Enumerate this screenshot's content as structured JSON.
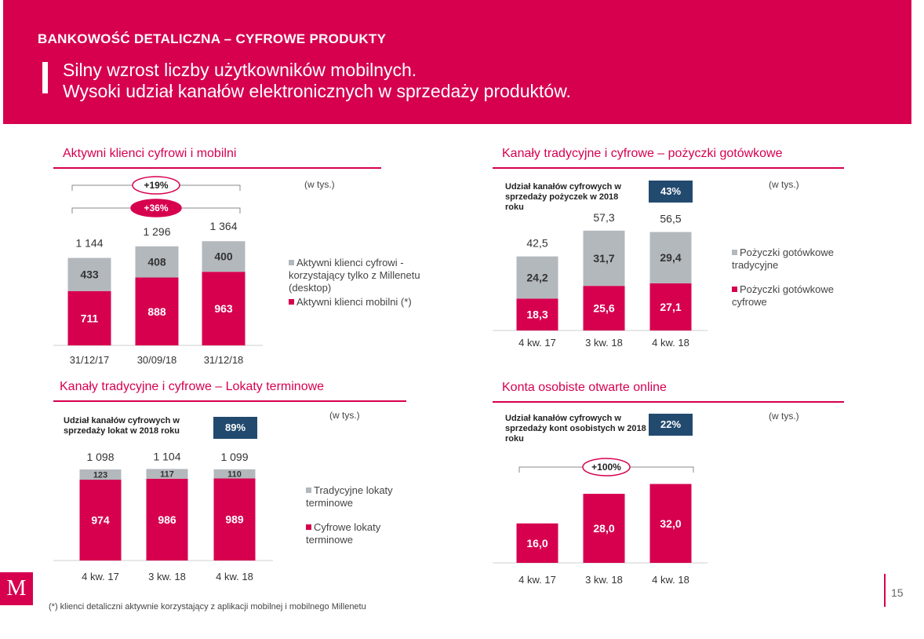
{
  "header": {
    "title": "BANKOWOŚĆ DETALICZNA – CYFROWE PRODUKTY",
    "subtitle_line1": "Silny wzrost liczby użytkowników mobilnych.",
    "subtitle_line2": "Wysoki udział kanałów elektronicznych w sprzedaży produktów."
  },
  "unit_label": "(w tys.)",
  "colors": {
    "brand": "#d6004f",
    "grey": "#b3b8bd",
    "badge": "#224a6e"
  },
  "chart_data": [
    {
      "id": "active_clients",
      "type": "bar",
      "stacked": true,
      "title": "Aktywni klienci cyfrowi i mobilni",
      "categories": [
        "31/12/17",
        "30/09/18",
        "31/12/18"
      ],
      "series": [
        {
          "name": "Aktywni klienci mobilni (*)",
          "color": "#d6004f",
          "values": [
            711,
            888,
            963
          ],
          "labels": [
            "711",
            "888",
            "963"
          ]
        },
        {
          "name": "Aktywni klienci cyfrowi - korzystający tylko z Millenetu (desktop)",
          "color": "#b3b8bd",
          "values": [
            433,
            408,
            400
          ],
          "labels": [
            "433",
            "408",
            "400"
          ]
        }
      ],
      "totals": [
        "1 144",
        "1 296",
        "1 364"
      ],
      "growth": [
        {
          "label": "+19%",
          "from": 0,
          "to": 2
        },
        {
          "label": "+36%",
          "from": 0,
          "to": 2
        }
      ]
    },
    {
      "id": "cash_loans",
      "type": "bar",
      "stacked": true,
      "title": "Kanały tradycyjne i cyfrowe – pożyczki gotówkowe",
      "share_label": "Udział kanałów cyfrowych w sprzedaży pożyczek w 2018 roku",
      "share_value": "43%",
      "categories": [
        "4 kw. 17",
        "3 kw. 18",
        "4 kw. 18"
      ],
      "series": [
        {
          "name": "Pożyczki gotówkowe cyfrowe",
          "color": "#d6004f",
          "values": [
            18.3,
            25.6,
            27.1
          ],
          "labels": [
            "18,3",
            "25,6",
            "27,1"
          ]
        },
        {
          "name": "Pożyczki gotówkowe tradycyjne",
          "color": "#b3b8bd",
          "values": [
            24.2,
            31.7,
            29.4
          ],
          "labels": [
            "24,2",
            "31,7",
            "29,4"
          ]
        }
      ],
      "totals": [
        "42,5",
        "57,3",
        "56,5"
      ]
    },
    {
      "id": "term_deposits",
      "type": "bar",
      "stacked": true,
      "title": "Kanały tradycyjne i cyfrowe – Lokaty terminowe",
      "share_label": "Udział kanałów cyfrowych w sprzedaży lokat w 2018 roku",
      "share_value": "89%",
      "categories": [
        "4 kw. 17",
        "3 kw. 18",
        "4 kw. 18"
      ],
      "series": [
        {
          "name": "Cyfrowe lokaty terminowe",
          "color": "#d6004f",
          "values": [
            974,
            986,
            989
          ],
          "labels": [
            "974",
            "986",
            "989"
          ]
        },
        {
          "name": "Tradycyjne lokaty terminowe",
          "color": "#b3b8bd",
          "values": [
            123,
            117,
            110
          ],
          "labels": [
            "123",
            "117",
            "110"
          ]
        }
      ],
      "totals": [
        "1 098",
        "1 104",
        "1 099"
      ]
    },
    {
      "id": "personal_accounts",
      "type": "bar",
      "stacked": false,
      "title": "Konta osobiste otwarte online",
      "share_label": "Udział kanałów cyfrowych w sprzedaży kont osobistych w 2018 roku",
      "share_value": "22%",
      "categories": [
        "4 kw. 17",
        "3 kw. 18",
        "4 kw. 18"
      ],
      "series": [
        {
          "name": "",
          "color": "#d6004f",
          "values": [
            16.0,
            28.0,
            32.0
          ],
          "labels": [
            "16,0",
            "28,0",
            "32,0"
          ]
        }
      ],
      "totals": [],
      "growth": [
        {
          "label": "+100%",
          "from": 0,
          "to": 2
        }
      ]
    }
  ],
  "footer": {
    "logo_letter": "M",
    "footnote": "(*) klienci detaliczni aktywnie korzystający z aplikacji mobilnej i mobilnego Millenetu",
    "page_number": "15"
  }
}
